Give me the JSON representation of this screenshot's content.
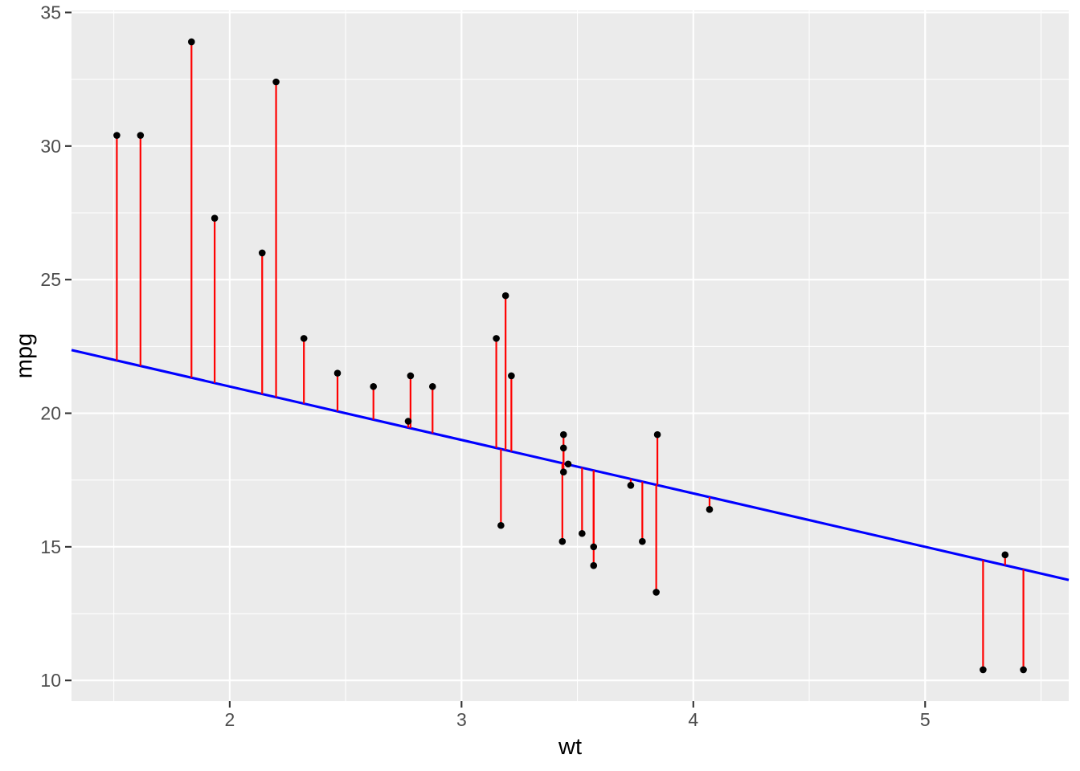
{
  "chart_data": {
    "type": "scatter",
    "title": "",
    "xlabel": "wt",
    "ylabel": "mpg",
    "xlim": [
      1.3175,
      5.6196
    ],
    "ylim": [
      9.225,
      35.075
    ],
    "x_ticks": [
      2,
      3,
      4,
      5
    ],
    "x_minor_ticks": [
      1.5,
      2.5,
      3.5,
      4.5,
      5.5
    ],
    "y_ticks": [
      10,
      15,
      20,
      25,
      30,
      35
    ],
    "y_minor_ticks": [
      12.5,
      17.5,
      22.5,
      27.5,
      32.5
    ],
    "grid": true,
    "legend": false,
    "points": [
      [
        2.62,
        21.0
      ],
      [
        2.875,
        21.0
      ],
      [
        2.32,
        22.8
      ],
      [
        3.215,
        21.4
      ],
      [
        3.44,
        18.7
      ],
      [
        3.46,
        18.1
      ],
      [
        3.57,
        14.3
      ],
      [
        3.19,
        24.4
      ],
      [
        3.15,
        22.8
      ],
      [
        3.44,
        19.2
      ],
      [
        3.44,
        17.8
      ],
      [
        4.07,
        16.4
      ],
      [
        3.73,
        17.3
      ],
      [
        3.78,
        15.2
      ],
      [
        5.25,
        10.4
      ],
      [
        5.424,
        10.4
      ],
      [
        5.345,
        14.7
      ],
      [
        2.2,
        32.4
      ],
      [
        1.615,
        30.4
      ],
      [
        1.835,
        33.9
      ],
      [
        2.465,
        21.5
      ],
      [
        3.52,
        15.5
      ],
      [
        3.435,
        15.2
      ],
      [
        3.84,
        13.3
      ],
      [
        3.845,
        19.2
      ],
      [
        1.935,
        27.3
      ],
      [
        2.14,
        26.0
      ],
      [
        1.513,
        30.4
      ],
      [
        3.17,
        15.8
      ],
      [
        2.77,
        19.7
      ],
      [
        3.57,
        15.0
      ],
      [
        2.78,
        21.4
      ]
    ],
    "line": {
      "intercept": 25,
      "slope": -2
    },
    "residual_segments": true,
    "colors": {
      "figure_background": "#FFFFFF",
      "panel_background": "#EBEBEB",
      "grid": "#FFFFFF",
      "point": "#000000",
      "line": "#0000FF",
      "residual": "#FF0000",
      "tick_mark": "#333333",
      "tick_label": "#4D4D4D",
      "axis_title": "#000000"
    }
  }
}
